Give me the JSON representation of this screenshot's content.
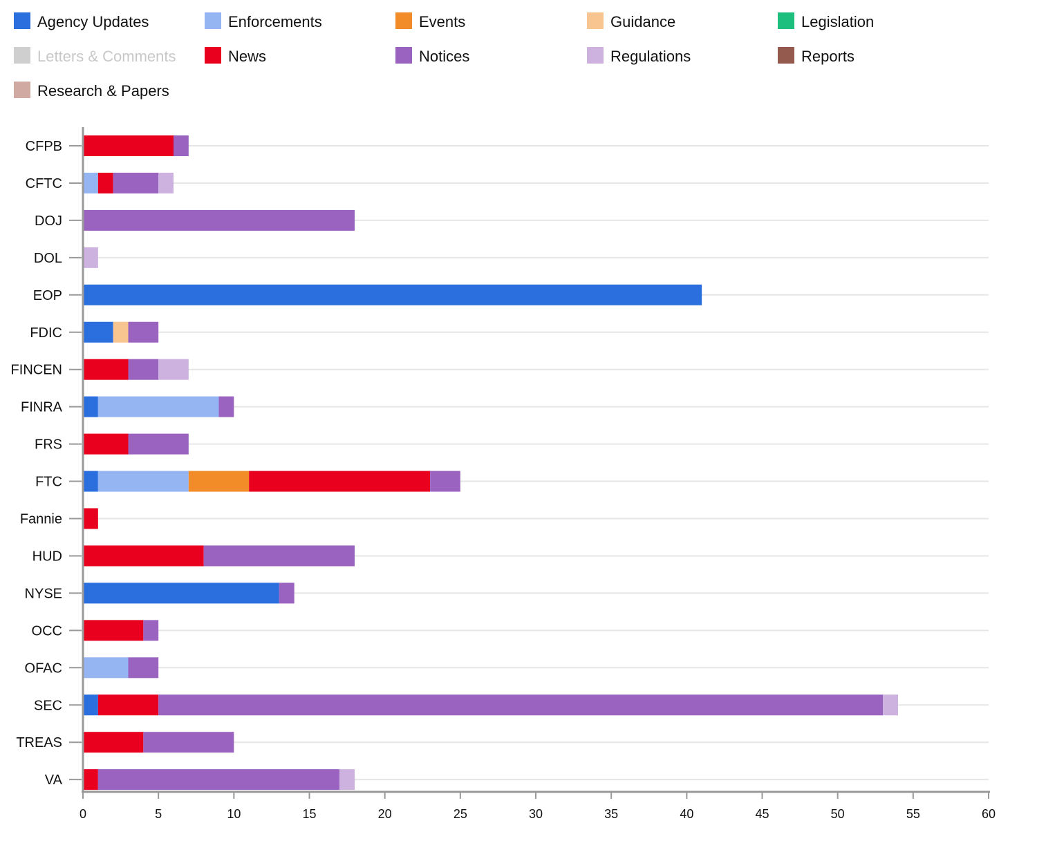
{
  "chart_data": {
    "type": "bar",
    "orientation": "horizontal",
    "stacked": true,
    "categories": [
      "CFPB",
      "CFTC",
      "DOJ",
      "DOL",
      "EOP",
      "FDIC",
      "FINCEN",
      "FINRA",
      "FRS",
      "FTC",
      "Fannie",
      "HUD",
      "NYSE",
      "OCC",
      "OFAC",
      "SEC",
      "TREAS",
      "VA"
    ],
    "series": [
      {
        "name": "Agency Updates",
        "color": "#2b6fde",
        "enabled": true,
        "values": [
          0,
          0,
          0,
          0,
          41,
          2,
          0,
          1,
          0,
          1,
          0,
          0,
          13,
          0,
          0,
          1,
          0,
          0
        ]
      },
      {
        "name": "Enforcements",
        "color": "#95b4f2",
        "enabled": true,
        "values": [
          0,
          1,
          0,
          0,
          0,
          0,
          0,
          8,
          0,
          6,
          0,
          0,
          0,
          0,
          3,
          0,
          0,
          0
        ]
      },
      {
        "name": "Events",
        "color": "#f28c28",
        "enabled": true,
        "values": [
          0,
          0,
          0,
          0,
          0,
          0,
          0,
          0,
          0,
          4,
          0,
          0,
          0,
          0,
          0,
          0,
          0,
          0
        ]
      },
      {
        "name": "Guidance",
        "color": "#f8c48f",
        "enabled": true,
        "values": [
          0,
          0,
          0,
          0,
          0,
          1,
          0,
          0,
          0,
          0,
          0,
          0,
          0,
          0,
          0,
          0,
          0,
          0
        ]
      },
      {
        "name": "Legislation",
        "color": "#1cbf7e",
        "enabled": true,
        "values": [
          0,
          0,
          0,
          0,
          0,
          0,
          0,
          0,
          0,
          0,
          0,
          0,
          0,
          0,
          0,
          0,
          0,
          0
        ]
      },
      {
        "name": "Letters & Comments",
        "color": "#cfcfcf",
        "enabled": false,
        "values": [
          0,
          0,
          0,
          0,
          0,
          0,
          0,
          0,
          0,
          0,
          0,
          0,
          0,
          0,
          0,
          0,
          0,
          0
        ]
      },
      {
        "name": "News",
        "color": "#e8001e",
        "enabled": true,
        "values": [
          6,
          1,
          0,
          0,
          0,
          0,
          3,
          0,
          3,
          12,
          1,
          8,
          0,
          4,
          0,
          4,
          4,
          1
        ]
      },
      {
        "name": "Notices",
        "color": "#9b63c0",
        "enabled": true,
        "values": [
          1,
          3,
          18,
          0,
          0,
          2,
          2,
          1,
          4,
          2,
          0,
          10,
          1,
          1,
          2,
          48,
          6,
          16
        ]
      },
      {
        "name": "Regulations",
        "color": "#cdb2e0",
        "enabled": true,
        "values": [
          0,
          1,
          0,
          1,
          0,
          0,
          2,
          0,
          0,
          0,
          0,
          0,
          0,
          0,
          0,
          1,
          0,
          1
        ]
      },
      {
        "name": "Reports",
        "color": "#955a4e",
        "enabled": true,
        "values": [
          0,
          0,
          0,
          0,
          0,
          0,
          0,
          0,
          0,
          0,
          0,
          0,
          0,
          0,
          0,
          0,
          0,
          0
        ]
      },
      {
        "name": "Research & Papers",
        "color": "#d0aaa2",
        "enabled": true,
        "values": [
          0,
          0,
          0,
          0,
          0,
          0,
          0,
          0,
          0,
          0,
          0,
          0,
          0,
          0,
          0,
          0,
          0,
          0
        ]
      }
    ],
    "xlim": [
      0,
      60
    ],
    "xticks": [
      0,
      5,
      10,
      15,
      20,
      25,
      30,
      35,
      40,
      45,
      50,
      55,
      60
    ],
    "grid": true,
    "legend_position": "top",
    "title": "",
    "xlabel": "",
    "ylabel": ""
  }
}
